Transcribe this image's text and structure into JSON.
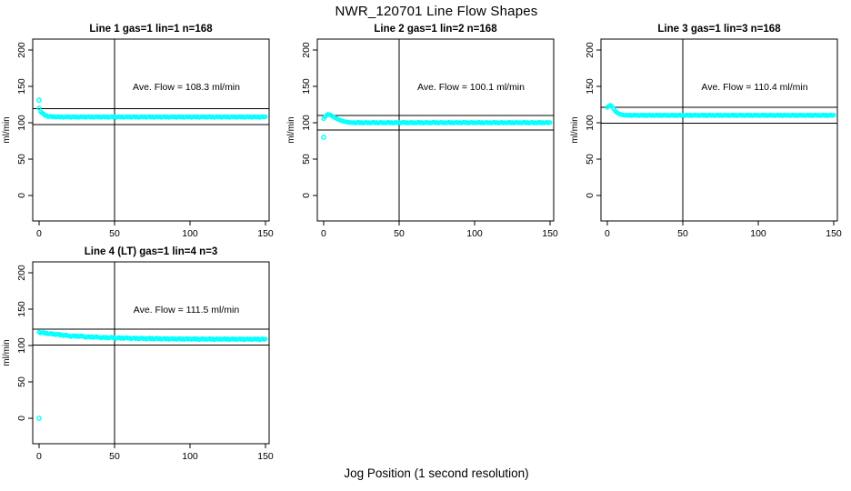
{
  "title": "NWR_120701  Line Flow Shapes",
  "xlabel": "Jog Position (1 second resolution)",
  "colors": {
    "point": "#00ffff",
    "axis": "#000000",
    "background": "#ffffff",
    "text": "#000000"
  },
  "chart_data": [
    {
      "type": "scatter",
      "title": "Line 1 gas=1 lin=1 n=168",
      "ave_flow_label": "Ave. Flow =  108.3  ml/min",
      "ave_flow_ml_min": 108.3,
      "ylabel": "ml/min",
      "xticks": [
        0,
        50,
        100,
        150
      ],
      "yticks": [
        0,
        50,
        100,
        150,
        200
      ],
      "xlim": [
        -4.2,
        152.4
      ],
      "ylim": [
        -35,
        215
      ],
      "ref_lines_y": [
        119.1,
        97.5
      ],
      "ref_line_x": 50,
      "x_start": 0,
      "x_step": 1,
      "outliers": [
        [
          0,
          131
        ]
      ],
      "y_values": [
        120.2,
        115.3,
        113.4,
        112.1,
        109.9,
        109.9,
        108.3,
        108.6,
        108.9,
        107.9,
        108.4,
        107.5,
        108.0,
        108.5,
        107.5,
        108.3,
        107.2,
        107.9,
        108.4,
        107.6,
        108.2,
        107.3,
        108.0,
        108.5,
        107.5,
        108.3,
        107.2,
        107.9,
        108.4,
        107.6,
        108.2,
        107.3,
        108.0,
        108.5,
        107.5,
        108.3,
        107.2,
        107.9,
        108.4,
        107.6,
        108.2,
        107.3,
        108.0,
        108.5,
        107.5,
        108.3,
        107.2,
        107.9,
        108.4,
        107.6,
        108.2,
        107.3,
        108.0,
        108.5,
        107.5,
        108.3,
        107.2,
        107.9,
        108.4,
        107.6,
        108.2,
        107.3,
        108.0,
        108.5,
        107.5,
        108.3,
        107.2,
        107.9,
        108.4,
        107.6,
        108.2,
        107.3,
        108.0,
        108.5,
        107.5,
        108.3,
        107.2,
        107.9,
        108.4,
        107.6,
        108.2,
        107.3,
        108.0,
        108.5,
        107.5,
        108.3,
        107.2,
        107.9,
        108.4,
        107.6,
        108.2,
        107.3,
        108.0,
        108.5,
        107.5,
        108.3,
        107.2,
        107.9,
        108.4,
        107.6,
        108.2,
        107.3,
        108.0,
        108.5,
        107.5,
        108.3,
        107.2,
        107.9,
        108.4,
        107.6,
        108.2,
        107.3,
        108.0,
        108.5,
        107.5,
        108.3,
        107.2,
        107.9,
        108.4,
        107.6,
        108.2,
        107.3,
        108.0,
        108.5,
        107.5,
        108.3,
        107.2,
        107.9,
        108.4,
        107.6,
        108.2,
        107.3,
        108.0,
        108.5,
        107.5,
        108.3,
        107.2,
        107.9,
        108.4,
        107.6,
        108.2,
        107.3,
        108.0,
        108.5,
        107.5,
        108.3,
        107.2,
        107.9,
        108.4,
        107.6,
        108.2
      ]
    },
    {
      "type": "scatter",
      "title": "Line 2 gas=1 lin=2 n=168",
      "ave_flow_label": "Ave. Flow =  100.1  ml/min",
      "ave_flow_ml_min": 100.1,
      "ylabel": "ml/min",
      "xticks": [
        0,
        50,
        100,
        150
      ],
      "yticks": [
        0,
        50,
        100,
        150,
        200
      ],
      "xlim": [
        -4.2,
        152.4
      ],
      "ylim": [
        -35,
        215
      ],
      "ref_lines_y": [
        110.1,
        90.1
      ],
      "ref_line_x": 50,
      "x_start": 0,
      "x_step": 1,
      "outliers": [
        [
          0,
          80
        ]
      ],
      "y_values": [
        105.5,
        108.0,
        110.5,
        111.5,
        111.0,
        110.0,
        108.8,
        107.5,
        106.3,
        105.2,
        104.2,
        103.4,
        102.6,
        102.0,
        101.5,
        101.1,
        100.8,
        100.5,
        100.3,
        100.1,
        100.4,
        99.5,
        100.2,
        100.7,
        99.7,
        100.5,
        99.4,
        100.1,
        100.6,
        99.8,
        100.4,
        99.5,
        100.2,
        100.7,
        99.7,
        100.5,
        99.4,
        100.1,
        100.6,
        99.8,
        100.4,
        99.5,
        100.2,
        100.7,
        99.7,
        100.5,
        99.4,
        100.1,
        100.6,
        99.8,
        100.4,
        99.5,
        100.2,
        100.7,
        99.7,
        100.5,
        99.4,
        100.1,
        100.6,
        99.8,
        100.4,
        99.5,
        100.2,
        100.7,
        99.7,
        100.5,
        99.4,
        100.1,
        100.6,
        99.8,
        100.4,
        99.5,
        100.2,
        100.7,
        99.7,
        100.5,
        99.4,
        100.1,
        100.6,
        99.8,
        100.4,
        99.5,
        100.2,
        100.7,
        99.7,
        100.5,
        99.4,
        100.1,
        100.6,
        99.8,
        100.4,
        99.5,
        100.2,
        100.7,
        99.7,
        100.5,
        99.4,
        100.1,
        100.6,
        99.8,
        100.4,
        99.5,
        100.2,
        100.7,
        99.7,
        100.5,
        99.4,
        100.1,
        100.6,
        99.8,
        100.4,
        99.5,
        100.2,
        100.7,
        99.7,
        100.5,
        99.4,
        100.1,
        100.6,
        99.8,
        100.4,
        99.5,
        100.2,
        100.7,
        99.7,
        100.5,
        99.4,
        100.1,
        100.6,
        99.8,
        100.4,
        99.5,
        100.2,
        100.7,
        99.7,
        100.5,
        99.4,
        100.1,
        100.6,
        99.8,
        100.4,
        99.5,
        100.2,
        100.7,
        99.7,
        100.5,
        99.4,
        100.1,
        100.6,
        99.8,
        100.4
      ]
    },
    {
      "type": "scatter",
      "title": "Line 3 gas=1 lin=3 n=168",
      "ave_flow_label": "Ave. Flow =  110.4  ml/min",
      "ave_flow_ml_min": 110.4,
      "ylabel": "ml/min",
      "xticks": [
        0,
        50,
        100,
        150
      ],
      "yticks": [
        0,
        50,
        100,
        150,
        200
      ],
      "xlim": [
        -4.2,
        152.4
      ],
      "ylim": [
        -35,
        215
      ],
      "ref_lines_y": [
        121.4,
        99.4
      ],
      "ref_line_x": 50,
      "x_start": 0,
      "x_step": 1,
      "outliers": [],
      "y_values": [
        121.0,
        123.0,
        124.0,
        122.5,
        119.5,
        116.8,
        114.8,
        113.3,
        112.2,
        111.4,
        110.9,
        110.5,
        110.2,
        110.6,
        109.9,
        110.6,
        109.6,
        110.3,
        110.8,
        110.0,
        110.5,
        109.6,
        110.3,
        110.8,
        109.8,
        110.6,
        109.5,
        110.2,
        110.7,
        109.9,
        110.5,
        109.6,
        110.3,
        110.8,
        109.8,
        110.6,
        109.5,
        110.2,
        110.7,
        109.9,
        110.5,
        109.6,
        110.3,
        110.8,
        109.8,
        110.6,
        109.5,
        110.2,
        110.7,
        109.9,
        110.5,
        109.6,
        110.3,
        110.8,
        109.8,
        110.6,
        109.5,
        110.2,
        110.7,
        109.9,
        110.5,
        109.6,
        110.3,
        110.8,
        109.8,
        110.6,
        109.5,
        110.2,
        110.7,
        109.9,
        110.5,
        109.6,
        110.3,
        110.8,
        109.8,
        110.6,
        109.5,
        110.2,
        110.7,
        109.9,
        110.5,
        109.6,
        110.3,
        110.8,
        109.8,
        110.6,
        109.5,
        110.2,
        110.7,
        109.9,
        110.5,
        109.6,
        110.3,
        110.8,
        109.8,
        110.6,
        109.5,
        110.2,
        110.7,
        109.9,
        110.5,
        109.6,
        110.3,
        110.8,
        109.8,
        110.6,
        109.5,
        110.2,
        110.7,
        109.9,
        110.5,
        109.6,
        110.3,
        110.8,
        109.8,
        110.6,
        109.5,
        110.2,
        110.7,
        109.9,
        110.5,
        109.6,
        110.3,
        110.8,
        109.8,
        110.6,
        109.5,
        110.2,
        110.7,
        109.9,
        110.5,
        109.6,
        110.3,
        110.8,
        109.8,
        110.6,
        109.5,
        110.2,
        110.7,
        109.9,
        110.5,
        109.6,
        110.3,
        110.8,
        109.8,
        110.6,
        109.5,
        110.2,
        110.7,
        109.9,
        110.5
      ]
    },
    {
      "type": "scatter",
      "title": "Line 4 (LT) gas=1 lin=4 n=3",
      "ave_flow_label": "Ave. Flow =  111.5  ml/min",
      "ave_flow_ml_min": 111.5,
      "ylabel": "ml/min",
      "xticks": [
        0,
        50,
        100,
        150
      ],
      "yticks": [
        0,
        50,
        100,
        150,
        200
      ],
      "xlim": [
        -4.2,
        152.4
      ],
      "ylim": [
        -35,
        215
      ],
      "ref_lines_y": [
        122.7,
        100.4
      ],
      "ref_line_x": 50,
      "x_start": 0,
      "x_step": 1,
      "outliers": [
        [
          0,
          0
        ]
      ],
      "y_values": [
        118.5,
        117.1,
        117.7,
        118.0,
        116.6,
        117.3,
        115.7,
        116.2,
        116.7,
        115.4,
        116.0,
        114.7,
        115.3,
        115.7,
        114.2,
        115.0,
        113.4,
        114.0,
        114.5,
        113.3,
        113.3,
        112.2,
        113.0,
        113.6,
        112.4,
        113.4,
        112.0,
        112.8,
        113.5,
        112.5,
        112.1,
        111.0,
        111.8,
        112.4,
        111.2,
        112.2,
        110.8,
        111.6,
        112.3,
        111.3,
        111.3,
        110.2,
        111.0,
        111.6,
        110.4,
        111.4,
        110.0,
        110.8,
        111.5,
        110.5,
        110.7,
        109.6,
        110.4,
        111.0,
        109.8,
        110.8,
        109.4,
        110.2,
        110.9,
        109.9,
        110.2,
        109.1,
        109.9,
        110.5,
        109.3,
        110.3,
        108.9,
        109.7,
        110.4,
        109.4,
        109.9,
        108.8,
        109.6,
        110.2,
        109.0,
        110.0,
        108.6,
        109.4,
        110.1,
        109.1,
        109.6,
        108.5,
        109.3,
        109.9,
        108.7,
        109.7,
        108.3,
        109.1,
        109.8,
        108.8,
        109.4,
        108.3,
        109.1,
        109.7,
        108.5,
        109.5,
        108.1,
        108.9,
        109.6,
        108.6,
        109.3,
        108.2,
        109.0,
        109.6,
        108.4,
        109.4,
        108.0,
        108.8,
        109.5,
        108.5,
        109.2,
        108.1,
        108.9,
        109.5,
        108.3,
        109.3,
        107.9,
        108.7,
        109.4,
        108.4,
        109.2,
        108.1,
        108.9,
        109.5,
        108.3,
        109.3,
        107.9,
        108.7,
        109.4,
        108.4,
        109.1,
        108.0,
        108.8,
        109.4,
        108.2,
        109.2,
        107.8,
        108.6,
        109.3,
        108.3,
        109.1,
        108.0,
        108.8,
        109.4,
        108.2,
        109.2,
        107.8,
        108.6,
        109.3,
        108.3,
        108.9
      ]
    }
  ]
}
